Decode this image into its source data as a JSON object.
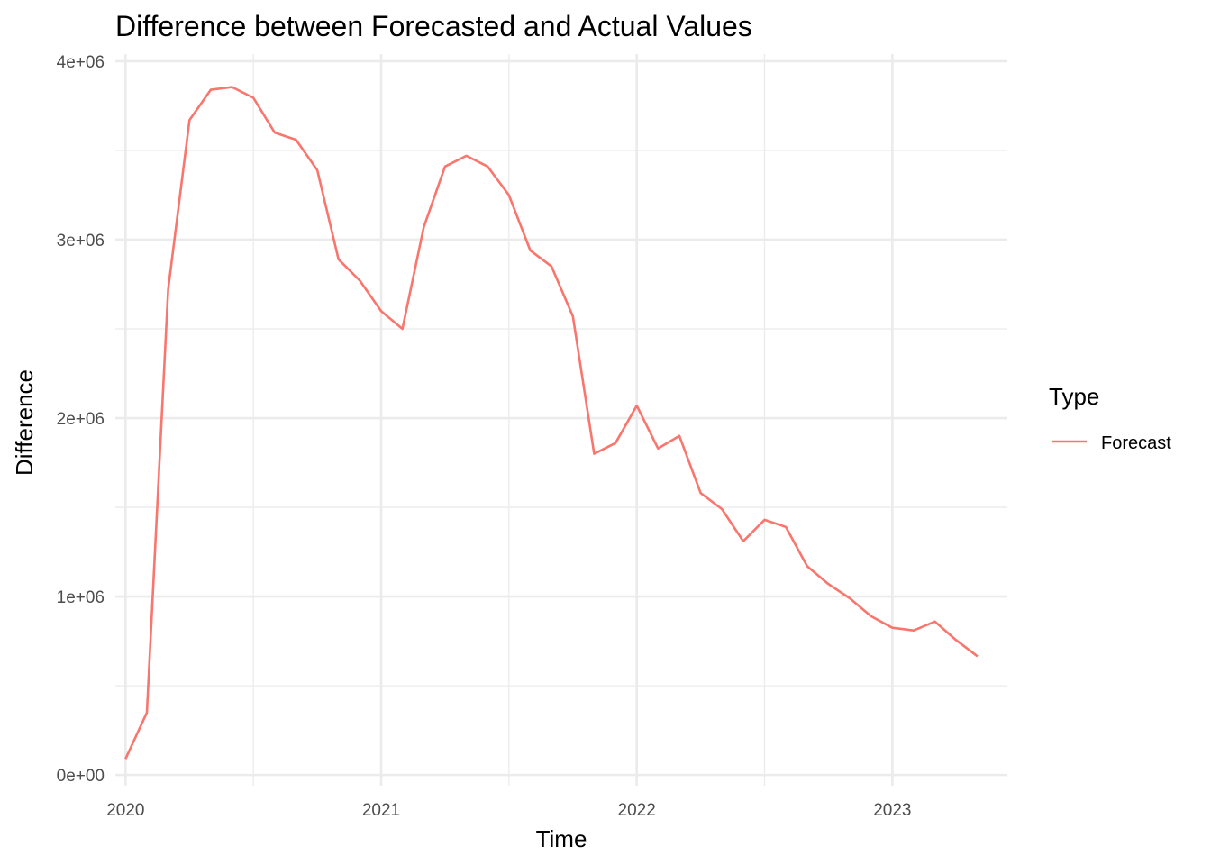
{
  "chart_data": {
    "type": "line",
    "title": "Difference between Forecasted and Actual Values",
    "xlabel": "Time",
    "ylabel": "Difference",
    "xlim": [
      2019.96,
      2023.45
    ],
    "ylim": [
      -60000,
      4040000
    ],
    "x_ticks": [
      2020,
      2021,
      2022,
      2023
    ],
    "x_tick_labels": [
      "2020",
      "2021",
      "2022",
      "2023"
    ],
    "x_minor_ticks": [
      2020.5,
      2021.5,
      2022.5
    ],
    "y_ticks": [
      0,
      1000000,
      2000000,
      3000000,
      4000000
    ],
    "y_tick_labels": [
      "0e+00",
      "1e+06",
      "2e+06",
      "3e+06",
      "4e+06"
    ],
    "y_minor_ticks": [
      500000,
      1500000,
      2500000,
      3500000
    ],
    "grid": true,
    "legend": {
      "title": "Type",
      "position": "right"
    },
    "series": [
      {
        "name": "Forecast",
        "color": "#f8766d",
        "x": [
          2020.0,
          2020.0833,
          2020.1667,
          2020.25,
          2020.3333,
          2020.4167,
          2020.5,
          2020.5833,
          2020.6667,
          2020.75,
          2020.8333,
          2020.9167,
          2021.0,
          2021.0833,
          2021.1667,
          2021.25,
          2021.3333,
          2021.4167,
          2021.5,
          2021.5833,
          2021.6667,
          2021.75,
          2021.8333,
          2021.9167,
          2022.0,
          2022.0833,
          2022.1667,
          2022.25,
          2022.3333,
          2022.4167,
          2022.5,
          2022.5833,
          2022.6667,
          2022.75,
          2022.8333,
          2022.9167,
          2023.0,
          2023.0833,
          2023.1667,
          2023.25,
          2023.3333
        ],
        "values": [
          90000,
          350000,
          2720000,
          3670000,
          3840000,
          3855000,
          3795000,
          3600000,
          3560000,
          3390000,
          2890000,
          2770000,
          2600000,
          2500000,
          3070000,
          3410000,
          3470000,
          3410000,
          3250000,
          2940000,
          2850000,
          2570000,
          1800000,
          1860000,
          2070000,
          1830000,
          1900000,
          1580000,
          1490000,
          1310000,
          1430000,
          1390000,
          1170000,
          1070000,
          990000,
          890000,
          825000,
          810000,
          860000,
          755000,
          665000
        ]
      }
    ]
  }
}
